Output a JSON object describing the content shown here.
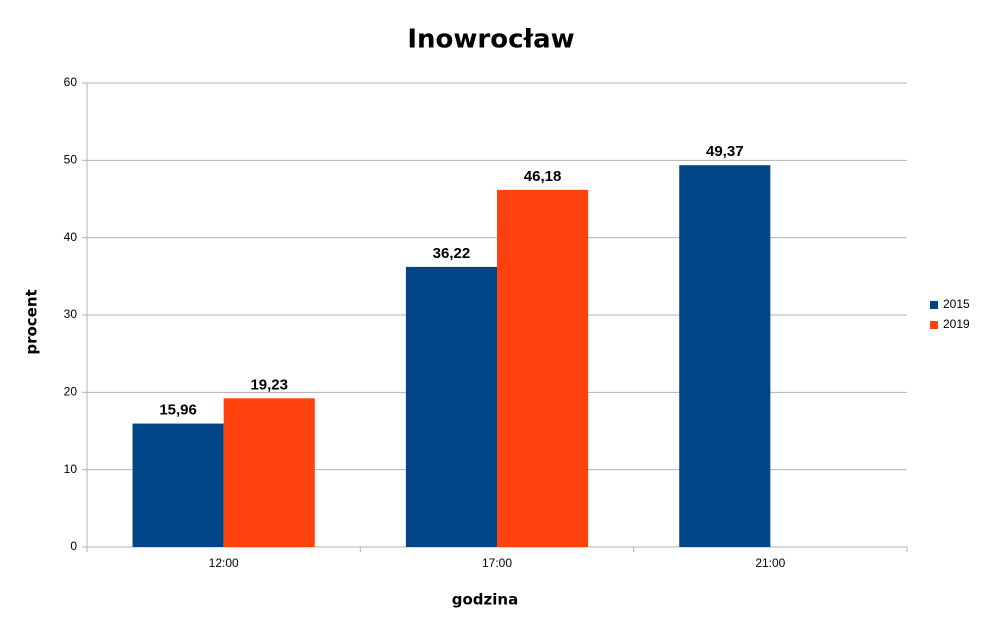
{
  "chart_data": {
    "type": "bar",
    "title": "Inowrocław",
    "x_label": "godzina",
    "y_label": "procent",
    "categories": [
      "12:00",
      "17:00",
      "21:00"
    ],
    "series": [
      {
        "name": "2015",
        "color": "#004586",
        "values": [
          15.96,
          36.22,
          49.37
        ],
        "value_labels": [
          "15,96",
          "36,22",
          "49,37"
        ]
      },
      {
        "name": "2019",
        "color": "#ff420e",
        "values": [
          19.23,
          46.18,
          null
        ],
        "value_labels": [
          "19,23",
          "46,18",
          null
        ]
      }
    ],
    "ylim": [
      0,
      60
    ],
    "yticks": [
      0,
      10,
      20,
      30,
      40,
      50,
      60
    ],
    "grid": true,
    "legend": "right"
  }
}
